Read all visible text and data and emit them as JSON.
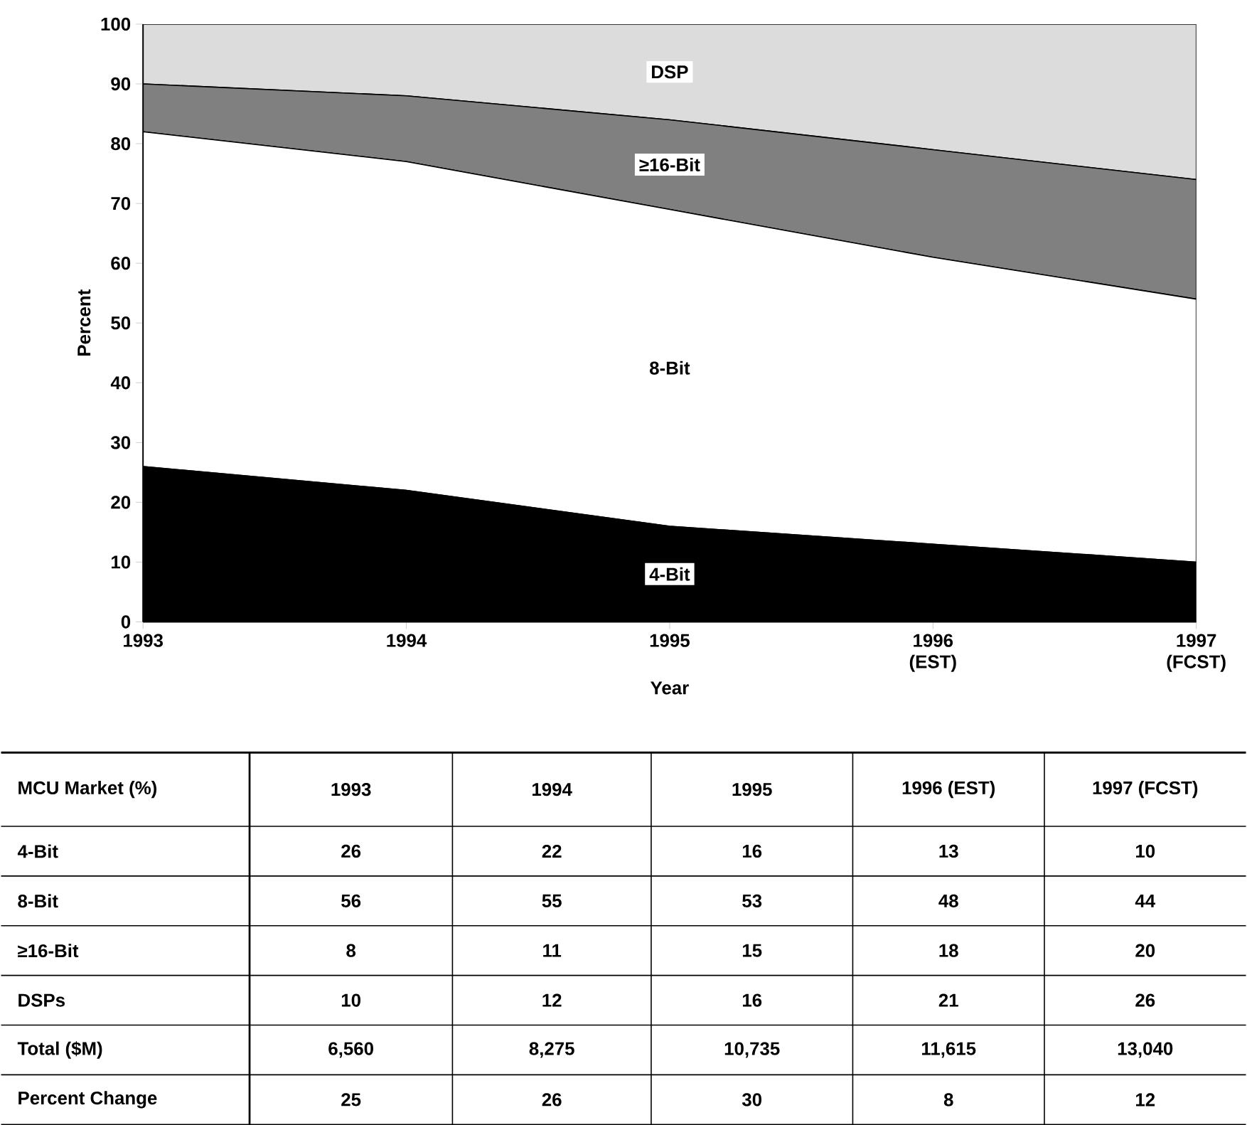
{
  "chart_data": [
    {
      "type": "area",
      "stacked": true,
      "xlabel": "Year",
      "ylabel": "Percent",
      "categories": [
        "1993",
        "1994",
        "1995",
        "1996 (EST)",
        "1997 (FCST)"
      ],
      "ylim": [
        0,
        100
      ],
      "yticks": [
        0,
        10,
        20,
        30,
        40,
        50,
        60,
        70,
        80,
        90,
        100
      ],
      "series": [
        {
          "name": "4-Bit",
          "color": "#000000",
          "values": [
            26,
            22,
            16,
            13,
            10
          ]
        },
        {
          "name": "8-Bit",
          "color": "#ffffff",
          "values": [
            56,
            55,
            53,
            48,
            44
          ]
        },
        {
          "name": "≥16-Bit",
          "color": "#808080",
          "values": [
            8,
            11,
            15,
            18,
            20
          ]
        },
        {
          "name": "DSP",
          "color": "#dcdcdc",
          "values": [
            10,
            12,
            16,
            21,
            26
          ]
        }
      ]
    },
    {
      "type": "other",
      "title": "MCU Market (%)",
      "data_labels": true,
      "categories": [
        "1993",
        "1994",
        "1995",
        "1996 (EST)",
        "1997 (FCST)"
      ],
      "series": [
        {
          "name": "4-Bit",
          "values": [
            26,
            22,
            16,
            13,
            10
          ]
        },
        {
          "name": "8-Bit",
          "values": [
            56,
            55,
            53,
            48,
            44
          ]
        },
        {
          "name": "≥16-Bit",
          "values": [
            8,
            11,
            15,
            18,
            20
          ]
        },
        {
          "name": "DSPs",
          "values": [
            10,
            12,
            16,
            21,
            26
          ]
        },
        {
          "name": "Total ($M)",
          "values": [
            6560,
            8275,
            10735,
            11615,
            13040
          ],
          "value_labels": [
            "6,560",
            "8,275",
            "10,735",
            "11,615",
            "13,040"
          ]
        },
        {
          "name": "Percent Change",
          "values": [
            25,
            26,
            30,
            8,
            12
          ]
        }
      ]
    }
  ]
}
